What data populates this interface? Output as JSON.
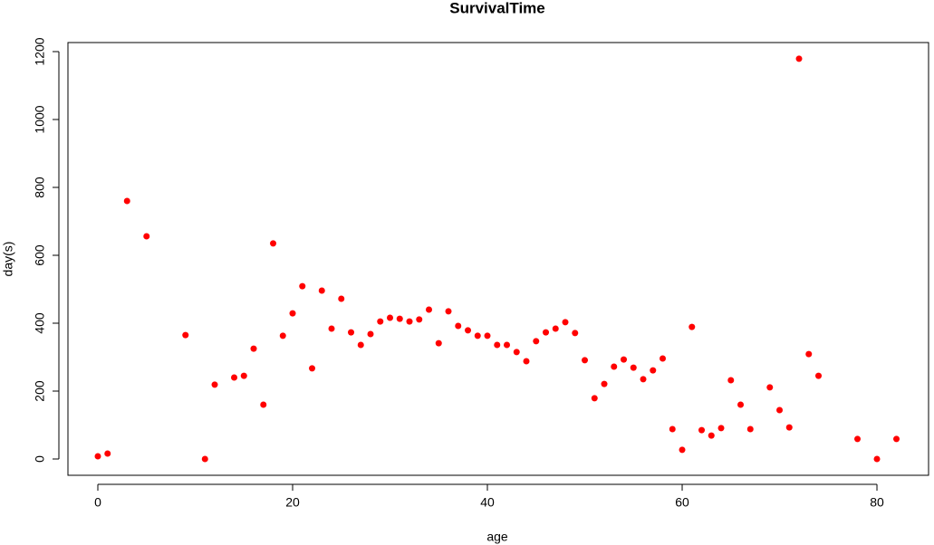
{
  "chart_data": {
    "type": "scatter",
    "title": "SurvivalTime",
    "x_label": "age",
    "y_label": "day(s)",
    "color": "#ff0000",
    "x": [
      0,
      1,
      3,
      5,
      9,
      11,
      12,
      14,
      15,
      16,
      17,
      18,
      19,
      20,
      21,
      22,
      23,
      24,
      25,
      26,
      27,
      28,
      29,
      30,
      31,
      32,
      33,
      34,
      35,
      36,
      37,
      38,
      39,
      40,
      41,
      42,
      43,
      44,
      45,
      46,
      47,
      48,
      49,
      50,
      51,
      52,
      53,
      54,
      55,
      56,
      57,
      58,
      59,
      60,
      61,
      62,
      63,
      64,
      65,
      66,
      67,
      69,
      70,
      71,
      72,
      73,
      74,
      78,
      80,
      82
    ],
    "values": [
      8,
      16,
      760,
      656,
      365,
      0,
      219,
      240,
      245,
      325,
      160,
      635,
      363,
      429,
      509,
      267,
      496,
      384,
      472,
      373,
      336,
      368,
      405,
      416,
      413,
      405,
      411,
      440,
      341,
      435,
      392,
      379,
      363,
      363,
      336,
      336,
      315,
      288,
      347,
      373,
      384,
      403,
      371,
      291,
      179,
      221,
      272,
      293,
      269,
      235,
      261,
      296,
      88,
      27,
      389,
      85,
      69,
      91,
      232,
      160,
      88,
      211,
      144,
      93,
      1179,
      309,
      245,
      59,
      0,
      59
    ],
    "xlim": [
      -3.07,
      85.3
    ],
    "ylim": [
      -48,
      1226.7
    ],
    "xticks": [
      0,
      20,
      40,
      60,
      80
    ],
    "yticks": [
      0,
      200,
      400,
      600,
      800,
      1000,
      1200
    ]
  }
}
